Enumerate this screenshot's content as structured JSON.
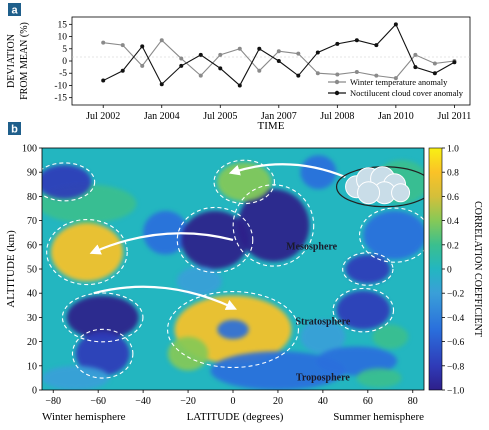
{
  "chart_data": [
    {
      "panel": "a",
      "type": "line",
      "ylabel": "DEVIATION FROM MEAN (%)",
      "xlabel": "TIME",
      "ylim": [
        -18,
        18
      ],
      "yticks": [
        15,
        10,
        5,
        0,
        -5,
        -10,
        -15
      ],
      "xticks": [
        "Jul 2002",
        "Jan 2004",
        "Jul 2005",
        "Jan 2007",
        "Jul 2008",
        "Jan 2010",
        "Jul 2011"
      ],
      "xtick_years": [
        2002.5,
        2004.0,
        2005.5,
        2007.0,
        2008.5,
        2010.0,
        2011.5
      ],
      "legend_position": "bottom-right",
      "series": [
        {
          "name": "Winter temperature anomaly",
          "color": "#8a8a8a",
          "marker": "circle",
          "x": [
            2002.5,
            2003.0,
            2003.5,
            2004.0,
            2004.5,
            2005.0,
            2005.5,
            2006.0,
            2006.5,
            2007.0,
            2007.5,
            2008.0,
            2008.5,
            2009.0,
            2009.5,
            2010.0,
            2010.5,
            2011.0,
            2011.5
          ],
          "y": [
            7.5,
            6.5,
            -2,
            8.5,
            1,
            -6,
            2.5,
            5,
            -4,
            4,
            3,
            -5,
            -5.5,
            -4.5,
            -6,
            -7,
            2.5,
            -1,
            0
          ]
        },
        {
          "name": "Noctilucent cloud cover anomaly",
          "color": "#111111",
          "marker": "circle",
          "x": [
            2002.5,
            2003.0,
            2003.5,
            2004.0,
            2004.5,
            2005.0,
            2005.5,
            2006.0,
            2006.5,
            2007.0,
            2007.5,
            2008.0,
            2008.5,
            2009.0,
            2009.5,
            2010.0,
            2010.5,
            2011.0,
            2011.5
          ],
          "y": [
            -8,
            -4,
            6,
            -9.5,
            -2,
            2.5,
            -3,
            -10,
            5,
            0,
            -6,
            3.5,
            7,
            8.5,
            6.5,
            15,
            -2.5,
            -5,
            -0.5
          ]
        }
      ]
    },
    {
      "panel": "b",
      "type": "heatmap",
      "ylabel": "ALTITUDE (km)",
      "xlabel": "LATITUDE (degrees)",
      "xlabel_left": "Winter hemisphere",
      "xlabel_right": "Summer hemisphere",
      "xlim": [
        -85,
        85
      ],
      "ylim": [
        0,
        100
      ],
      "xticks": [
        -80,
        -60,
        -40,
        -20,
        0,
        20,
        40,
        60,
        80
      ],
      "yticks": [
        0,
        10,
        20,
        30,
        40,
        50,
        60,
        70,
        80,
        90,
        100
      ],
      "colorbar": {
        "label": "CORRELATION COEFFICIENT",
        "ticks": [
          1.0,
          0.8,
          0.6,
          0.4,
          0.2,
          0,
          -0.2,
          -0.4,
          -0.6,
          -0.8,
          -1.0
        ],
        "ticklabels": [
          "1.0",
          "0.8",
          "0.6",
          "0.4",
          "0.2",
          "0",
          "−0.2",
          "−0.4",
          "−0.6",
          "−0.8",
          "−1.0"
        ],
        "range": [
          -1,
          1
        ]
      },
      "annotations": [
        {
          "text": "Mesosphere",
          "lat": 35,
          "alt": 58
        },
        {
          "text": "Stratosphere",
          "lat": 40,
          "alt": 27
        },
        {
          "text": "Troposphere",
          "lat": 40,
          "alt": 4
        }
      ],
      "features": [
        {
          "name": "cloud",
          "lat": 63,
          "alt": 84
        },
        {
          "name": "circulation-arrow",
          "from": [
            50,
            88
          ],
          "to": [
            0,
            90
          ]
        },
        {
          "name": "circulation-arrow",
          "from": [
            0,
            62
          ],
          "to": [
            -62,
            57
          ]
        },
        {
          "name": "circulation-arrow",
          "from": [
            -62,
            40
          ],
          "to": [
            0,
            34
          ]
        }
      ],
      "blobs": [
        {
          "lat": -65,
          "alt": 57,
          "rlat": 16,
          "ralt": 12,
          "value": 0.95
        },
        {
          "lat": -65,
          "alt": 77,
          "rlat": 22,
          "ralt": 8,
          "value": 0.35
        },
        {
          "lat": -75,
          "alt": 86,
          "rlat": 12,
          "ralt": 7,
          "value": -0.55
        },
        {
          "lat": -58,
          "alt": 30,
          "rlat": 16,
          "ralt": 9,
          "value": -0.9
        },
        {
          "lat": -58,
          "alt": 15,
          "rlat": 12,
          "ralt": 9,
          "value": -0.55
        },
        {
          "lat": -30,
          "alt": 65,
          "rlat": 10,
          "ralt": 9,
          "value": -0.35
        },
        {
          "lat": -8,
          "alt": 62,
          "rlat": 15,
          "ralt": 12,
          "value": -0.95
        },
        {
          "lat": 18,
          "alt": 68,
          "rlat": 16,
          "ralt": 15,
          "value": -0.9
        },
        {
          "lat": 5,
          "alt": 86,
          "rlat": 12,
          "ralt": 8,
          "value": 0.55
        },
        {
          "lat": 38,
          "alt": 90,
          "rlat": 8,
          "ralt": 7,
          "value": -0.3
        },
        {
          "lat": 75,
          "alt": 86,
          "rlat": 12,
          "ralt": 9,
          "value": 0.25
        },
        {
          "lat": 72,
          "alt": 64,
          "rlat": 14,
          "ralt": 10,
          "value": -0.5
        },
        {
          "lat": 60,
          "alt": 50,
          "rlat": 10,
          "ralt": 6,
          "value": -0.55
        },
        {
          "lat": 0,
          "alt": 25,
          "rlat": 26,
          "ralt": 14,
          "value": 0.85
        },
        {
          "lat": 0,
          "alt": 25,
          "rlat": 7,
          "ralt": 4,
          "value": -0.4
        },
        {
          "lat": -20,
          "alt": 15,
          "rlat": 9,
          "ralt": 7,
          "value": 0.45
        },
        {
          "lat": 40,
          "alt": 22,
          "rlat": 10,
          "ralt": 7,
          "value": -0.2
        },
        {
          "lat": 70,
          "alt": 22,
          "rlat": 8,
          "ralt": 5,
          "value": 0.3
        },
        {
          "lat": 58,
          "alt": 33,
          "rlat": 12,
          "ralt": 8,
          "value": -0.6
        },
        {
          "lat": -15,
          "alt": 45,
          "rlat": 10,
          "ralt": 6,
          "value": -0.05
        },
        {
          "lat": 20,
          "alt": 8,
          "rlat": 30,
          "ralt": 8,
          "value": -0.3
        },
        {
          "lat": -70,
          "alt": 5,
          "rlat": 15,
          "ralt": 5,
          "value": -0.15
        },
        {
          "lat": 55,
          "alt": 12,
          "rlat": 18,
          "ralt": 6,
          "value": -0.4
        },
        {
          "lat": 65,
          "alt": 5,
          "rlat": 10,
          "ralt": 4,
          "value": 0.3
        }
      ]
    }
  ],
  "panel_labels": {
    "a": "a",
    "b": "b"
  }
}
